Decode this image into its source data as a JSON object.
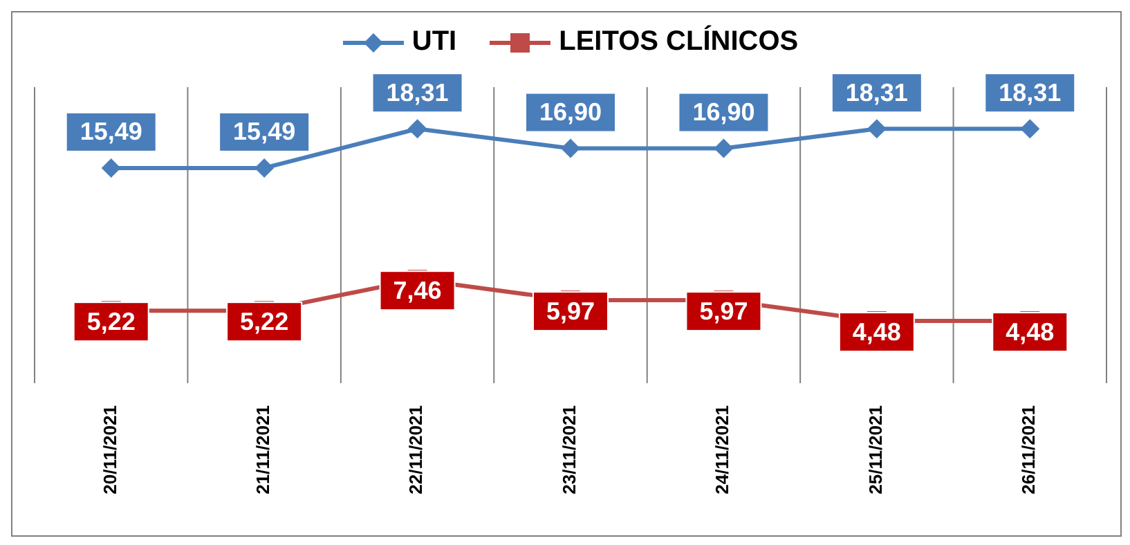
{
  "chart_data": {
    "type": "line",
    "categories": [
      "20/11/2021",
      "21/11/2021",
      "22/11/2021",
      "23/11/2021",
      "24/11/2021",
      "25/11/2021",
      "26/11/2021"
    ],
    "series": [
      {
        "name": "UTI",
        "color": "#4a7ebb",
        "marker": "diamond",
        "values": [
          15.49,
          15.49,
          18.31,
          16.9,
          16.9,
          18.31,
          18.31
        ],
        "value_labels": [
          "15,49",
          "15,49",
          "18,31",
          "16,90",
          "16,90",
          "18,31",
          "18,31"
        ]
      },
      {
        "name": "LEITOS CLÍNICOS",
        "color": "#be4b48",
        "marker": "square",
        "values": [
          5.22,
          5.22,
          7.46,
          5.97,
          5.97,
          4.48,
          4.48
        ],
        "value_labels": [
          "5,22",
          "5,22",
          "7,46",
          "5,97",
          "5,97",
          "4,48",
          "4,48"
        ]
      }
    ],
    "grid": "x",
    "legend": "top",
    "tick_labels": "x"
  }
}
